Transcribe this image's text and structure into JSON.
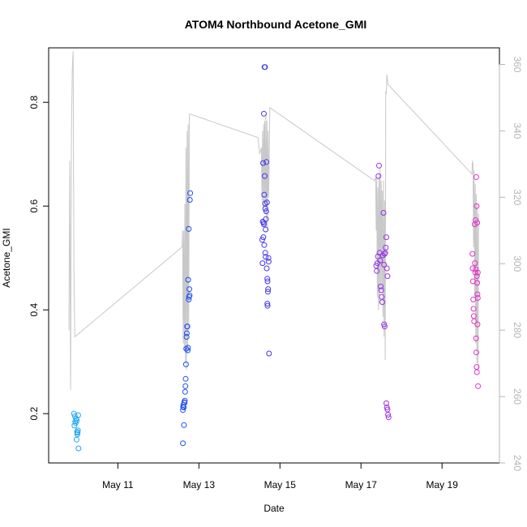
{
  "chart_data": {
    "type": "scatter",
    "title": "ATOM4 Northbound Acetone_GMI",
    "xlabel": "Date",
    "ylabel": "Acetone_GMI",
    "xlim": [
      "2018-05-09T07:00",
      "2018-05-20T10:00"
    ],
    "ylim": [
      0.105,
      0.905
    ],
    "y_ticks": [
      0.2,
      0.4,
      0.6,
      0.8
    ],
    "x_ticks": [
      {
        "date": "2018-05-11",
        "label": "May 11"
      },
      {
        "date": "2018-05-13",
        "label": "May 13"
      },
      {
        "date": "2018-05-15",
        "label": "May 15"
      },
      {
        "date": "2018-05-17",
        "label": "May 17"
      },
      {
        "date": "2018-05-19",
        "label": "May 19"
      }
    ],
    "right_axis": {
      "ylim": [
        240,
        365
      ],
      "ticks": [
        240,
        260,
        280,
        300,
        320,
        340,
        360
      ],
      "color": "#b4b4b4"
    },
    "point_color_gradient": [
      "#1eaaf0",
      "#1e3cf0",
      "#7832f0",
      "#e632c8"
    ],
    "points": [
      {
        "x": "2018-05-09T22:00",
        "y": 0.2
      },
      {
        "x": "2018-05-09T22:30",
        "y": 0.195
      },
      {
        "x": "2018-05-09T22:15",
        "y": 0.177
      },
      {
        "x": "2018-05-09T22:45",
        "y": 0.185
      },
      {
        "x": "2018-05-09T23:00",
        "y": 0.182
      },
      {
        "x": "2018-05-09T23:15",
        "y": 0.19
      },
      {
        "x": "2018-05-09T23:30",
        "y": 0.15
      },
      {
        "x": "2018-05-09T23:40",
        "y": 0.187
      },
      {
        "x": "2018-05-09T23:50",
        "y": 0.165
      },
      {
        "x": "2018-05-10T00:00",
        "y": 0.16
      },
      {
        "x": "2018-05-10T00:10",
        "y": 0.163
      },
      {
        "x": "2018-05-10T00:20",
        "y": 0.168
      },
      {
        "x": "2018-05-10T00:30",
        "y": 0.197
      },
      {
        "x": "2018-05-10T00:40",
        "y": 0.133
      },
      {
        "x": "2018-05-12T14:30",
        "y": 0.143
      },
      {
        "x": "2018-05-12T14:30",
        "y": 0.207
      },
      {
        "x": "2018-05-12T14:40",
        "y": 0.213
      },
      {
        "x": "2018-05-12T14:50",
        "y": 0.217
      },
      {
        "x": "2018-05-12T15:00",
        "y": 0.212
      },
      {
        "x": "2018-05-12T15:10",
        "y": 0.178
      },
      {
        "x": "2018-05-12T15:20",
        "y": 0.222
      },
      {
        "x": "2018-05-12T15:30",
        "y": 0.221
      },
      {
        "x": "2018-05-12T15:40",
        "y": 0.225
      },
      {
        "x": "2018-05-12T15:50",
        "y": 0.242
      },
      {
        "x": "2018-05-12T16:00",
        "y": 0.253
      },
      {
        "x": "2018-05-12T16:10",
        "y": 0.267
      },
      {
        "x": "2018-05-12T16:20",
        "y": 0.295
      },
      {
        "x": "2018-05-12T16:30",
        "y": 0.325
      },
      {
        "x": "2018-05-12T16:40",
        "y": 0.348
      },
      {
        "x": "2018-05-12T16:50",
        "y": 0.355
      },
      {
        "x": "2018-05-12T17:00",
        "y": 0.368
      },
      {
        "x": "2018-05-12T17:10",
        "y": 0.368
      },
      {
        "x": "2018-05-12T17:20",
        "y": 0.322
      },
      {
        "x": "2018-05-12T17:30",
        "y": 0.327
      },
      {
        "x": "2018-05-12T17:40",
        "y": 0.458
      },
      {
        "x": "2018-05-12T18:00",
        "y": 0.42
      },
      {
        "x": "2018-05-12T18:10",
        "y": 0.425
      },
      {
        "x": "2018-05-12T18:20",
        "y": 0.44
      },
      {
        "x": "2018-05-12T18:30",
        "y": 0.428
      },
      {
        "x": "2018-05-12T18:00",
        "y": 0.556
      },
      {
        "x": "2018-05-12T18:40",
        "y": 0.612
      },
      {
        "x": "2018-05-12T18:50",
        "y": 0.625
      },
      {
        "x": "2018-05-14T13:30",
        "y": 0.535
      },
      {
        "x": "2018-05-14T13:40",
        "y": 0.49
      },
      {
        "x": "2018-05-14T13:50",
        "y": 0.57
      },
      {
        "x": "2018-05-14T14:00",
        "y": 0.683
      },
      {
        "x": "2018-05-14T14:10",
        "y": 0.54
      },
      {
        "x": "2018-05-14T14:20",
        "y": 0.568
      },
      {
        "x": "2018-05-14T14:30",
        "y": 0.565
      },
      {
        "x": "2018-05-14T14:40",
        "y": 0.525
      },
      {
        "x": "2018-05-14T14:30",
        "y": 0.778
      },
      {
        "x": "2018-05-14T14:40",
        "y": 0.622
      },
      {
        "x": "2018-05-14T14:50",
        "y": 0.868
      },
      {
        "x": "2018-05-14T15:10",
        "y": 0.868
      },
      {
        "x": "2018-05-14T15:00",
        "y": 0.658
      },
      {
        "x": "2018-05-14T15:10",
        "y": 0.605
      },
      {
        "x": "2018-05-14T15:20",
        "y": 0.595
      },
      {
        "x": "2018-05-14T15:30",
        "y": 0.555
      },
      {
        "x": "2018-05-14T15:40",
        "y": 0.575
      },
      {
        "x": "2018-05-14T15:50",
        "y": 0.59
      },
      {
        "x": "2018-05-14T16:00",
        "y": 0.685
      },
      {
        "x": "2018-05-14T15:20",
        "y": 0.51
      },
      {
        "x": "2018-05-14T15:30",
        "y": 0.502
      },
      {
        "x": "2018-05-14T16:10",
        "y": 0.48
      },
      {
        "x": "2018-05-14T16:20",
        "y": 0.607
      },
      {
        "x": "2018-05-14T16:30",
        "y": 0.46
      },
      {
        "x": "2018-05-14T16:40",
        "y": 0.455
      },
      {
        "x": "2018-05-14T16:50",
        "y": 0.435
      },
      {
        "x": "2018-05-14T17:00",
        "y": 0.44
      },
      {
        "x": "2018-05-14T16:30",
        "y": 0.412
      },
      {
        "x": "2018-05-14T16:40",
        "y": 0.408
      },
      {
        "x": "2018-05-14T17:10",
        "y": 0.5
      },
      {
        "x": "2018-05-14T17:20",
        "y": 0.493
      },
      {
        "x": "2018-05-14T17:30",
        "y": 0.316
      },
      {
        "x": "2018-05-17T09:00",
        "y": 0.485
      },
      {
        "x": "2018-05-17T09:20",
        "y": 0.475
      },
      {
        "x": "2018-05-17T09:40",
        "y": 0.49
      },
      {
        "x": "2018-05-17T10:00",
        "y": 0.503
      },
      {
        "x": "2018-05-17T10:20",
        "y": 0.658
      },
      {
        "x": "2018-05-17T10:40",
        "y": 0.678
      },
      {
        "x": "2018-05-17T11:00",
        "y": 0.51
      },
      {
        "x": "2018-05-17T11:20",
        "y": 0.495
      },
      {
        "x": "2018-05-17T11:40",
        "y": 0.445
      },
      {
        "x": "2018-05-17T12:00",
        "y": 0.438
      },
      {
        "x": "2018-05-17T12:20",
        "y": 0.425
      },
      {
        "x": "2018-05-17T12:40",
        "y": 0.415
      },
      {
        "x": "2018-05-17T13:00",
        "y": 0.505
      },
      {
        "x": "2018-05-17T13:20",
        "y": 0.587
      },
      {
        "x": "2018-05-17T13:40",
        "y": 0.487
      },
      {
        "x": "2018-05-17T14:00",
        "y": 0.508
      },
      {
        "x": "2018-05-17T14:20",
        "y": 0.51
      },
      {
        "x": "2018-05-17T14:40",
        "y": 0.52
      },
      {
        "x": "2018-05-17T15:00",
        "y": 0.54
      },
      {
        "x": "2018-05-17T15:20",
        "y": 0.48
      },
      {
        "x": "2018-05-17T15:40",
        "y": 0.465
      },
      {
        "x": "2018-05-17T13:40",
        "y": 0.372
      },
      {
        "x": "2018-05-17T14:00",
        "y": 0.368
      },
      {
        "x": "2018-05-17T15:00",
        "y": 0.22
      },
      {
        "x": "2018-05-17T15:20",
        "y": 0.212
      },
      {
        "x": "2018-05-17T15:40",
        "y": 0.208
      },
      {
        "x": "2018-05-17T16:00",
        "y": 0.198
      },
      {
        "x": "2018-05-17T16:20",
        "y": 0.193
      },
      {
        "x": "2018-05-19T18:00",
        "y": 0.508
      },
      {
        "x": "2018-05-19T18:10",
        "y": 0.48
      },
      {
        "x": "2018-05-19T18:20",
        "y": 0.455
      },
      {
        "x": "2018-05-19T18:30",
        "y": 0.42
      },
      {
        "x": "2018-05-19T18:40",
        "y": 0.402
      },
      {
        "x": "2018-05-19T18:50",
        "y": 0.388
      },
      {
        "x": "2018-05-19T19:00",
        "y": 0.378
      },
      {
        "x": "2018-05-19T19:20",
        "y": 0.565
      },
      {
        "x": "2018-05-19T19:30",
        "y": 0.49
      },
      {
        "x": "2018-05-19T19:40",
        "y": 0.472
      },
      {
        "x": "2018-05-19T19:50",
        "y": 0.573
      },
      {
        "x": "2018-05-19T20:00",
        "y": 0.478
      },
      {
        "x": "2018-05-19T20:10",
        "y": 0.345
      },
      {
        "x": "2018-05-19T20:20",
        "y": 0.318
      },
      {
        "x": "2018-05-19T20:30",
        "y": 0.29
      },
      {
        "x": "2018-05-19T20:40",
        "y": 0.28
      },
      {
        "x": "2018-05-19T20:20",
        "y": 0.656
      },
      {
        "x": "2018-05-19T20:30",
        "y": 0.6
      },
      {
        "x": "2018-05-19T20:40",
        "y": 0.465
      },
      {
        "x": "2018-05-19T20:50",
        "y": 0.452
      },
      {
        "x": "2018-05-19T21:00",
        "y": 0.372
      },
      {
        "x": "2018-05-19T21:10",
        "y": 0.423
      },
      {
        "x": "2018-05-19T21:20",
        "y": 0.253
      },
      {
        "x": "2018-05-19T20:50",
        "y": 0.568
      },
      {
        "x": "2018-05-19T21:00",
        "y": 0.43
      },
      {
        "x": "2018-05-19T21:10",
        "y": 0.472
      }
    ],
    "line_right_axis": [
      {
        "x": "2018-05-09T19:00",
        "y": 280
      },
      {
        "x": "2018-05-09T19:30",
        "y": 331
      },
      {
        "x": "2018-05-09T20:00",
        "y": 262
      },
      {
        "x": "2018-05-09T20:30",
        "y": 340
      },
      {
        "x": "2018-05-09T21:00",
        "y": 359
      },
      {
        "x": "2018-05-09T21:30",
        "y": 364
      },
      {
        "x": "2018-05-09T22:00",
        "y": 298
      },
      {
        "x": "2018-05-09T22:30",
        "y": 278
      },
      {
        "x": "2018-05-12T14:00",
        "y": 305
      },
      {
        "x": "2018-05-12T14:20",
        "y": 310
      },
      {
        "x": "2018-05-12T14:40",
        "y": 276
      },
      {
        "x": "2018-05-12T15:00",
        "y": 310
      },
      {
        "x": "2018-05-12T15:20",
        "y": 274
      },
      {
        "x": "2018-05-12T15:40",
        "y": 318
      },
      {
        "x": "2018-05-12T16:00",
        "y": 270
      },
      {
        "x": "2018-05-12T16:20",
        "y": 335
      },
      {
        "x": "2018-05-12T16:40",
        "y": 268
      },
      {
        "x": "2018-05-12T17:00",
        "y": 340
      },
      {
        "x": "2018-05-12T17:20",
        "y": 275
      },
      {
        "x": "2018-05-12T17:40",
        "y": 342
      },
      {
        "x": "2018-05-12T18:00",
        "y": 280
      },
      {
        "x": "2018-05-12T18:20",
        "y": 345
      },
      {
        "x": "2018-05-12T19:00",
        "y": 345
      },
      {
        "x": "2018-05-14T11:00",
        "y": 338
      },
      {
        "x": "2018-05-14T12:00",
        "y": 333
      },
      {
        "x": "2018-05-14T13:00",
        "y": 335
      },
      {
        "x": "2018-05-14T13:20",
        "y": 319
      },
      {
        "x": "2018-05-14T13:40",
        "y": 340
      },
      {
        "x": "2018-05-14T14:00",
        "y": 317
      },
      {
        "x": "2018-05-14T14:20",
        "y": 342
      },
      {
        "x": "2018-05-14T14:40",
        "y": 318
      },
      {
        "x": "2018-05-14T15:00",
        "y": 343
      },
      {
        "x": "2018-05-14T15:20",
        "y": 315
      },
      {
        "x": "2018-05-14T15:40",
        "y": 345
      },
      {
        "x": "2018-05-14T16:00",
        "y": 312
      },
      {
        "x": "2018-05-14T16:20",
        "y": 343
      },
      {
        "x": "2018-05-14T16:40",
        "y": 310
      },
      {
        "x": "2018-05-14T17:00",
        "y": 340
      },
      {
        "x": "2018-05-14T17:20",
        "y": 320
      },
      {
        "x": "2018-05-14T18:00",
        "y": 347
      },
      {
        "x": "2018-05-17T08:00",
        "y": 325
      },
      {
        "x": "2018-05-17T08:40",
        "y": 326
      },
      {
        "x": "2018-05-17T09:00",
        "y": 310
      },
      {
        "x": "2018-05-17T09:20",
        "y": 326
      },
      {
        "x": "2018-05-17T09:40",
        "y": 290
      },
      {
        "x": "2018-05-17T10:00",
        "y": 323
      },
      {
        "x": "2018-05-17T10:20",
        "y": 286
      },
      {
        "x": "2018-05-17T10:40",
        "y": 327
      },
      {
        "x": "2018-05-17T11:00",
        "y": 288
      },
      {
        "x": "2018-05-17T11:20",
        "y": 329
      },
      {
        "x": "2018-05-17T11:40",
        "y": 293
      },
      {
        "x": "2018-05-17T12:00",
        "y": 325
      },
      {
        "x": "2018-05-17T12:20",
        "y": 292
      },
      {
        "x": "2018-05-17T12:40",
        "y": 322
      },
      {
        "x": "2018-05-17T13:00",
        "y": 284
      },
      {
        "x": "2018-05-17T13:20",
        "y": 325
      },
      {
        "x": "2018-05-17T13:40",
        "y": 278
      },
      {
        "x": "2018-05-17T14:00",
        "y": 319
      },
      {
        "x": "2018-05-17T14:20",
        "y": 271
      },
      {
        "x": "2018-05-17T14:40",
        "y": 352
      },
      {
        "x": "2018-05-17T15:00",
        "y": 351
      },
      {
        "x": "2018-05-17T15:20",
        "y": 357
      },
      {
        "x": "2018-05-17T16:00",
        "y": 354
      },
      {
        "x": "2018-05-19T17:40",
        "y": 327
      },
      {
        "x": "2018-05-19T18:00",
        "y": 331
      },
      {
        "x": "2018-05-19T18:20",
        "y": 330
      },
      {
        "x": "2018-05-19T18:40",
        "y": 305
      },
      {
        "x": "2018-05-19T19:00",
        "y": 328
      },
      {
        "x": "2018-05-19T19:20",
        "y": 290
      },
      {
        "x": "2018-05-19T19:40",
        "y": 324
      },
      {
        "x": "2018-05-19T20:00",
        "y": 276
      },
      {
        "x": "2018-05-19T20:20",
        "y": 321
      },
      {
        "x": "2018-05-19T20:40",
        "y": 270
      },
      {
        "x": "2018-05-19T21:00",
        "y": 318
      },
      {
        "x": "2018-05-19T21:20",
        "y": 268
      },
      {
        "x": "2018-05-19T21:40",
        "y": 315
      }
    ],
    "line_color": "#c8c8c8",
    "grid": false,
    "legend": "none"
  }
}
